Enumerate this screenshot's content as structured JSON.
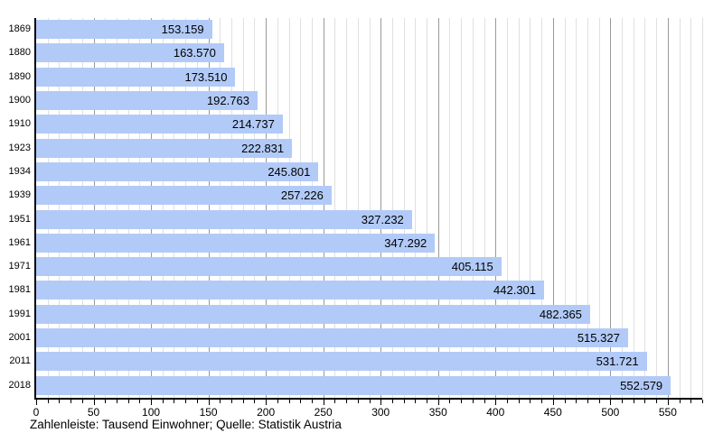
{
  "caption": "Zahlenleiste: Tausend Einwohner; Quelle: Statistik Austria",
  "chart_data": {
    "type": "bar",
    "orientation": "horizontal",
    "title": "",
    "xlabel": "",
    "ylabel": "",
    "unit": "Tausend Einwohner",
    "source": "Statistik Austria",
    "categories": [
      "1869",
      "1880",
      "1890",
      "1900",
      "1910",
      "1923",
      "1934",
      "1939",
      "1951",
      "1961",
      "1971",
      "1981",
      "1991",
      "2001",
      "2011",
      "2018"
    ],
    "values": [
      153.159,
      163.57,
      173.51,
      192.763,
      214.737,
      222.831,
      245.801,
      257.226,
      327.232,
      347.292,
      405.115,
      442.301,
      482.365,
      515.327,
      531.721,
      552.579
    ],
    "value_labels": [
      "153.159",
      "163.570",
      "173.510",
      "192.763",
      "214.737",
      "222.831",
      "245.801",
      "257.226",
      "327.232",
      "347.292",
      "405.115",
      "442.301",
      "482.365",
      "515.327",
      "531.721",
      "552.579"
    ],
    "xlim": [
      0,
      580
    ],
    "x_major_step": 50,
    "x_minor_step": 10,
    "x_tick_labels": [
      "0",
      "50",
      "100",
      "150",
      "200",
      "250",
      "300",
      "350",
      "400",
      "450",
      "500",
      "550"
    ],
    "grid": true,
    "legend": false,
    "colors": {
      "bar": "#b2caf7",
      "grid_minor": "#e0e0e0",
      "grid_major": "#999999",
      "axis": "#000000",
      "text": "#000000",
      "background": "#ffffff"
    }
  }
}
